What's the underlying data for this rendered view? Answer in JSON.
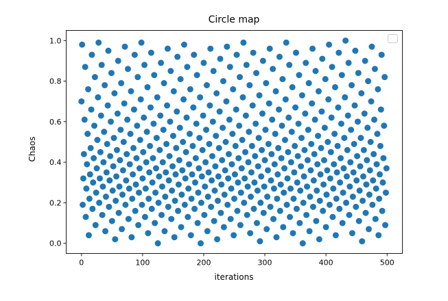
{
  "chart_data": {
    "type": "scatter",
    "title": "Circle map",
    "xlabel": "iterations",
    "ylabel": "Chaos",
    "xlim": [
      -25,
      525
    ],
    "ylim": [
      -0.05,
      1.05
    ],
    "x_ticks": [
      "0",
      "100",
      "200",
      "300",
      "400",
      "500"
    ],
    "y_ticks": [
      "0.0",
      "0.2",
      "0.4",
      "0.6",
      "0.8",
      "1.0"
    ],
    "x_start": 0,
    "x_step": 1,
    "color": "#1f77b4",
    "legend": "top-right",
    "legend_entries": [],
    "grid": false,
    "y": [
      0.7,
      0.98,
      0.19,
      0.32,
      0.44,
      0.61,
      0.87,
      0.13,
      0.27,
      0.39,
      0.54,
      0.76,
      0.04,
      0.22,
      0.34,
      0.47,
      0.66,
      0.93,
      0.17,
      0.3,
      0.42,
      0.58,
      0.82,
      0.09,
      0.25,
      0.37,
      0.51,
      0.72,
      0.99,
      0.2,
      0.32,
      0.45,
      0.63,
      0.88,
      0.14,
      0.28,
      0.4,
      0.55,
      0.78,
      0.06,
      0.23,
      0.35,
      0.49,
      0.68,
      0.95,
      0.18,
      0.31,
      0.43,
      0.6,
      0.84,
      0.11,
      0.26,
      0.38,
      0.52,
      0.74,
      0.02,
      0.21,
      0.33,
      0.46,
      0.64,
      0.9,
      0.15,
      0.28,
      0.41,
      0.56,
      0.79,
      0.07,
      0.24,
      0.36,
      0.5,
      0.69,
      0.97,
      0.19,
      0.31,
      0.44,
      0.61,
      0.86,
      0.12,
      0.27,
      0.39,
      0.54,
      0.75,
      0.03,
      0.22,
      0.34,
      0.47,
      0.66,
      0.93,
      0.16,
      0.29,
      0.42,
      0.58,
      0.82,
      0.09,
      0.25,
      0.37,
      0.51,
      0.71,
      0.99,
      0.19,
      0.32,
      0.45,
      0.62,
      0.88,
      0.13,
      0.27,
      0.4,
      0.55,
      0.77,
      0.05,
      0.22,
      0.35,
      0.48,
      0.67,
      0.94,
      0.17,
      0.3,
      0.42,
      0.59,
      0.83,
      0.1,
      0.25,
      0.37,
      0.52,
      0.72,
      0.0,
      0.2,
      0.33,
      0.46,
      0.63,
      0.89,
      0.14,
      0.28,
      0.4,
      0.56,
      0.79,
      0.06,
      0.23,
      0.35,
      0.49,
      0.68,
      0.96,
      0.18,
      0.31,
      0.43,
      0.6,
      0.85,
      0.12,
      0.26,
      0.38,
      0.53,
      0.75,
      0.03,
      0.21,
      0.34,
      0.47,
      0.65,
      0.92,
      0.16,
      0.29,
      0.41,
      0.57,
      0.81,
      0.08,
      0.24,
      0.36,
      0.5,
      0.71,
      0.98,
      0.19,
      0.32,
      0.45,
      0.62,
      0.87,
      0.13,
      0.27,
      0.39,
      0.54,
      0.76,
      0.04,
      0.22,
      0.34,
      0.48,
      0.67,
      0.93,
      0.17,
      0.3,
      0.42,
      0.59,
      0.83,
      0.1,
      0.25,
      0.37,
      0.52,
      0.72,
      0.0,
      0.2,
      0.33,
      0.46,
      0.63,
      0.89,
      0.14,
      0.28,
      0.4,
      0.56,
      0.78,
      0.06,
      0.23,
      0.35,
      0.49,
      0.68,
      0.96,
      0.18,
      0.31,
      0.43,
      0.6,
      0.85,
      0.11,
      0.26,
      0.38,
      0.53,
      0.74,
      0.02,
      0.21,
      0.33,
      0.47,
      0.65,
      0.91,
      0.15,
      0.29,
      0.41,
      0.57,
      0.8,
      0.08,
      0.24,
      0.36,
      0.5,
      0.7,
      0.97,
      0.19,
      0.32,
      0.44,
      0.61,
      0.87,
      0.12,
      0.27,
      0.39,
      0.54,
      0.76,
      0.04,
      0.22,
      0.34,
      0.48,
      0.66,
      0.93,
      0.16,
      0.3,
      0.42,
      0.58,
      0.82,
      0.09,
      0.25,
      0.37,
      0.51,
      0.72,
      0.99,
      0.2,
      0.32,
      0.45,
      0.63,
      0.88,
      0.14,
      0.28,
      0.4,
      0.55,
      0.78,
      0.05,
      0.23,
      0.35,
      0.48,
      0.68,
      0.94,
      0.17,
      0.3,
      0.43,
      0.59,
      0.84,
      0.1,
      0.26,
      0.38,
      0.52,
      0.73,
      0.01,
      0.2,
      0.33,
      0.46,
      0.64,
      0.9,
      0.15,
      0.28,
      0.41,
      0.56,
      0.79,
      0.07,
      0.23,
      0.36,
      0.49,
      0.69,
      0.96,
      0.18,
      0.31,
      0.44,
      0.61,
      0.86,
      0.12,
      0.27,
      0.39,
      0.54,
      0.75,
      0.03,
      0.22,
      0.34,
      0.47,
      0.66,
      0.92,
      0.16,
      0.29,
      0.42,
      0.58,
      0.81,
      0.08,
      0.25,
      0.37,
      0.51,
      0.71,
      0.99,
      0.19,
      0.32,
      0.45,
      0.62,
      0.88,
      0.13,
      0.27,
      0.4,
      0.55,
      0.77,
      0.05,
      0.22,
      0.35,
      0.48,
      0.67,
      0.94,
      0.17,
      0.3,
      0.43,
      0.59,
      0.83,
      0.1,
      0.26,
      0.38,
      0.52,
      0.73,
      0.0,
      0.2,
      0.33,
      0.46,
      0.64,
      0.89,
      0.14,
      0.28,
      0.41,
      0.56,
      0.79,
      0.06,
      0.23,
      0.36,
      0.49,
      0.69,
      0.96,
      0.18,
      0.31,
      0.44,
      0.61,
      0.85,
      0.11,
      0.26,
      0.39,
      0.53,
      0.75,
      0.02,
      0.21,
      0.34,
      0.47,
      0.65,
      0.91,
      0.16,
      0.29,
      0.41,
      0.57,
      0.81,
      0.08,
      0.24,
      0.36,
      0.5,
      0.71,
      0.98,
      0.19,
      0.32,
      0.45,
      0.62,
      0.87,
      0.13,
      0.27,
      0.39,
      0.54,
      0.77,
      0.04,
      0.22,
      0.35,
      0.48,
      0.67,
      0.94,
      0.17,
      0.3,
      0.42,
      0.59,
      0.83,
      0.1,
      0.25,
      0.37,
      0.52,
      0.72,
      1.0,
      0.2,
      0.33,
      0.46,
      0.63,
      0.89,
      0.14,
      0.28,
      0.4,
      0.56,
      0.78,
      0.05,
      0.23,
      0.35,
      0.49,
      0.68,
      0.95,
      0.18,
      0.31,
      0.43,
      0.6,
      0.84,
      0.11,
      0.26,
      0.38,
      0.52,
      0.74,
      0.01,
      0.21,
      0.33,
      0.46,
      0.64,
      0.9,
      0.15,
      0.29,
      0.41,
      0.57,
      0.8,
      0.07,
      0.24,
      0.36,
      0.5,
      0.7,
      0.97,
      0.19,
      0.31,
      0.44,
      0.61,
      0.86,
      0.12,
      0.27,
      0.39,
      0.54,
      0.76,
      0.04,
      0.22,
      0.34,
      0.48,
      0.66,
      0.93,
      0.16,
      0.3,
      0.42,
      0.58,
      0.82,
      0.09,
      0.25,
      0.37
    ]
  }
}
